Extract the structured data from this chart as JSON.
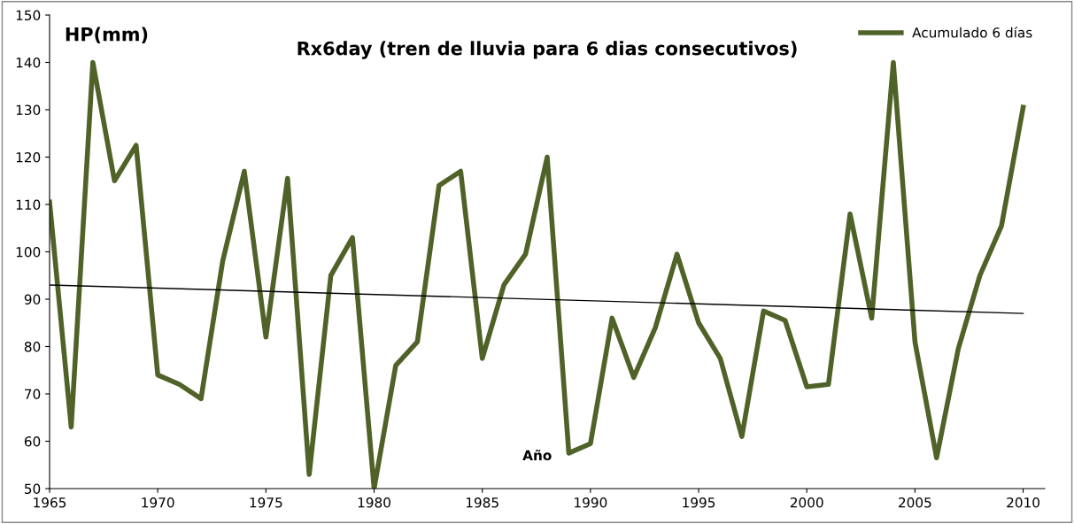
{
  "chart_data": {
    "type": "line",
    "title": "Rx6day (tren de lluvia para 6 dias consecutivos)",
    "xlabel": "Año",
    "ylabel": "HP(mm)",
    "x": [
      1965,
      1966,
      1967,
      1968,
      1969,
      1970,
      1971,
      1972,
      1973,
      1974,
      1975,
      1976,
      1977,
      1978,
      1979,
      1980,
      1981,
      1982,
      1983,
      1984,
      1985,
      1986,
      1987,
      1988,
      1989,
      1990,
      1991,
      1992,
      1993,
      1994,
      1995,
      1996,
      1997,
      1998,
      1999,
      2000,
      2001,
      2002,
      2003,
      2004,
      2005,
      2006,
      2007,
      2008,
      2009,
      2010
    ],
    "series": [
      {
        "name": "Acumulado 6 días",
        "color": "#4f6228",
        "values": [
          110.5,
          63,
          140,
          115,
          122.5,
          74,
          72,
          69,
          98,
          117,
          82,
          115.5,
          53,
          95,
          103,
          50,
          76,
          81,
          114,
          117,
          77.5,
          93,
          99.5,
          120,
          57.5,
          59.5,
          86,
          73.5,
          84,
          99.5,
          85,
          77.5,
          61,
          87.5,
          85.5,
          71.5,
          72,
          108,
          86,
          140,
          81,
          56.5,
          79.5,
          95,
          105.5,
          130.5
        ]
      },
      {
        "type": "line",
        "color": "#000000",
        "x": [
          1965,
          2010
        ],
        "values": [
          93,
          87
        ]
      }
    ],
    "xlim": [
      1965,
      2011
    ],
    "xticks": [
      1965,
      1970,
      1975,
      1980,
      1985,
      1990,
      1995,
      2000,
      2005,
      2010
    ],
    "ylim": [
      50,
      150
    ],
    "yticks": [
      50,
      60,
      70,
      80,
      90,
      100,
      110,
      120,
      130,
      140,
      150
    ],
    "grid": false,
    "legend": "top right",
    "marker": "none",
    "line_style": "solid"
  }
}
